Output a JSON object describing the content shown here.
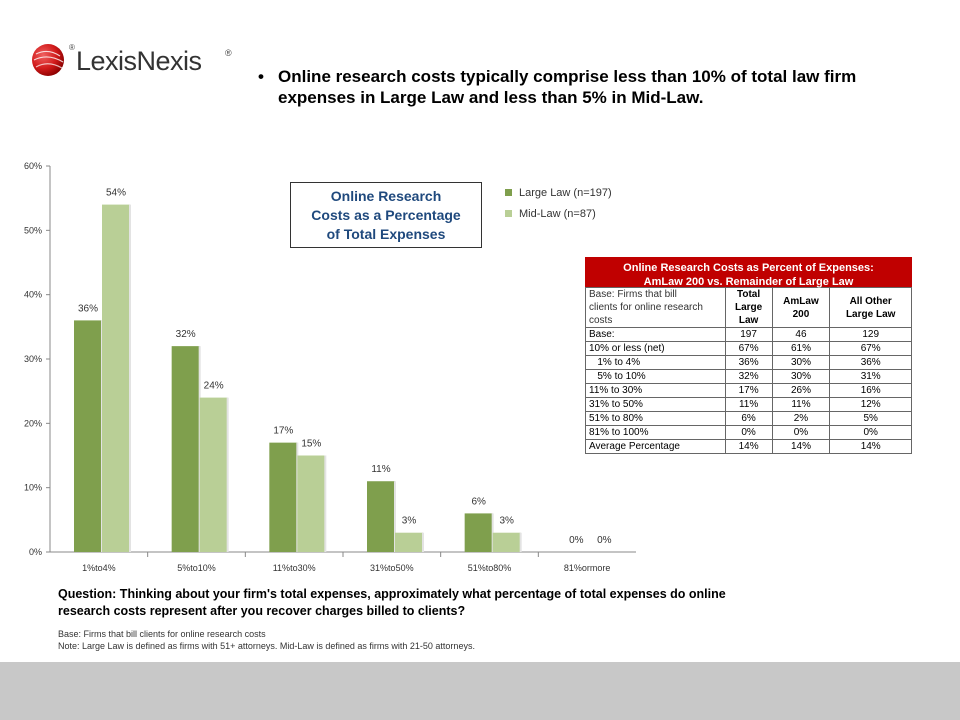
{
  "logo": {
    "text": "LexisNexis",
    "reg": "®"
  },
  "headline": {
    "bullet": "•",
    "text": "Online research costs typically comprise less than 10% of total law firm expenses in Large Law and less than 5% in Mid-Law."
  },
  "callout": {
    "lines": [
      "Online Research",
      "Costs as a Percentage",
      "of Total Expenses"
    ]
  },
  "chart_data": {
    "type": "bar",
    "categories": [
      "1%to4%",
      "5%to10%",
      "11%to30%",
      "31%to50%",
      "51%to80%",
      "81%ormore"
    ],
    "series": [
      {
        "name": "Large Law (n=197)",
        "color": "#7f9f4d",
        "values": [
          36,
          32,
          17,
          11,
          6,
          0
        ],
        "labels": [
          "36%",
          "32%",
          "17%",
          "11%",
          "6%",
          "0%"
        ]
      },
      {
        "name": "Mid-Law (n=87)",
        "color": "#b9cf96",
        "values": [
          54,
          24,
          15,
          3,
          3,
          0
        ],
        "labels": [
          "54%",
          "24%",
          "15%",
          "3%",
          "3%",
          "0%"
        ]
      }
    ],
    "yticks": [
      "0%",
      "10%",
      "20%",
      "30%",
      "40%",
      "50%",
      "60%"
    ],
    "ylim": [
      0,
      60
    ],
    "grid": false,
    "legend": "top-right"
  },
  "table": {
    "title_line1": "Online Research Costs as Percent of Expenses:",
    "title_line2": "AmLaw 200 vs. Remainder of Large Law",
    "header": {
      "base_label_lines": [
        "Base: Firms that bill",
        "clients for online research",
        "costs"
      ],
      "col1": [
        "Total",
        "Large",
        "Law"
      ],
      "col2": [
        "AmLaw",
        "200"
      ],
      "col3": [
        "All Other",
        "Large Law"
      ]
    },
    "rows": [
      [
        "Base:",
        "197",
        "46",
        "129"
      ],
      [
        "10% or less (net)",
        "67%",
        "61%",
        "67%"
      ],
      [
        "   1% to 4%",
        "36%",
        "30%",
        "36%"
      ],
      [
        "   5% to 10%",
        "32%",
        "30%",
        "31%"
      ],
      [
        "11% to 30%",
        "17%",
        "26%",
        "16%"
      ],
      [
        "31% to 50%",
        "11%",
        "11%",
        "12%"
      ],
      [
        "51% to 80%",
        "6%",
        "2%",
        "5%"
      ],
      [
        "81% to 100%",
        "0%",
        "0%",
        "0%"
      ],
      [
        "Average Percentage",
        "14%",
        "14%",
        "14%"
      ]
    ]
  },
  "question": "Question:  Thinking about your firm's total expenses, approximately what percentage of total expenses do online research costs represent after you recover charges billed to clients?",
  "notes": {
    "base": "Base: Firms that bill clients for online research costs",
    "note": "Note: Large Law is defined as firms with 51+ attorneys.  Mid-Law is defined as firms with 21-50 attorneys."
  }
}
